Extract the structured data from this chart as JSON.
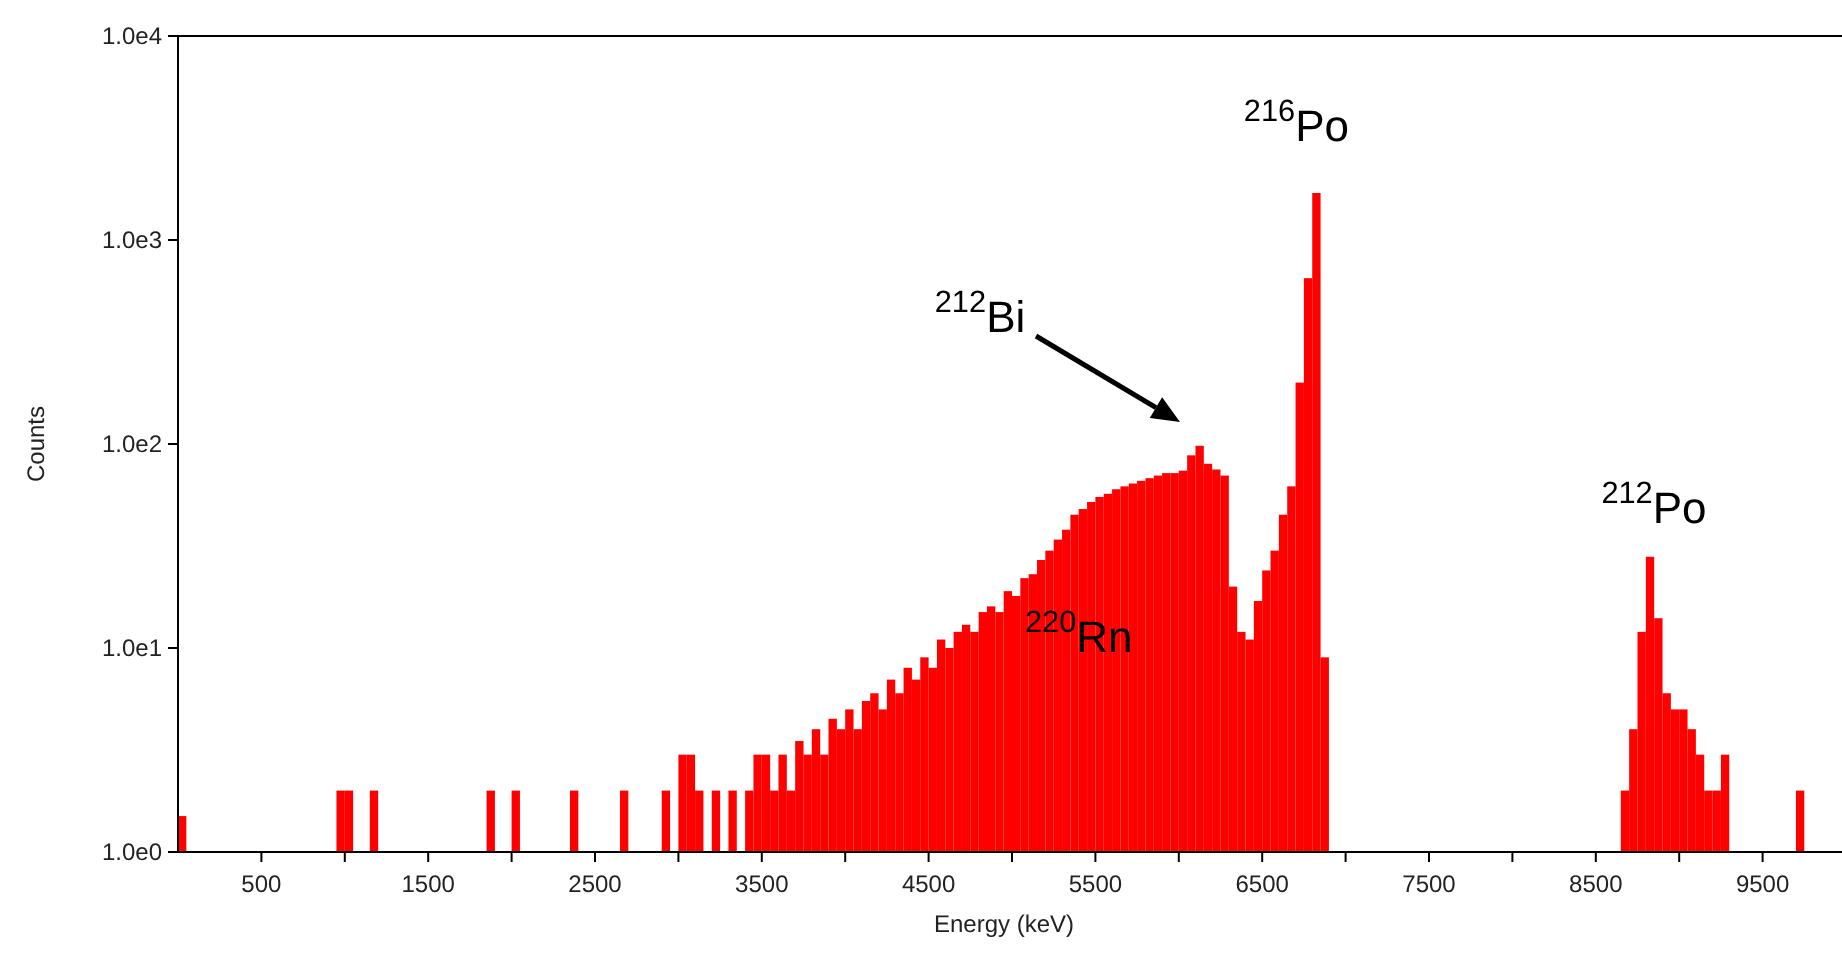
{
  "chart_data": {
    "type": "histogram",
    "xlabel": "Energy (keV)",
    "ylabel": "Counts",
    "color": "#ff0000",
    "log": "y",
    "xlim": [
      0,
      10000
    ],
    "xticks": [
      500,
      {
        "value": 1000,
        "label": null
      },
      1500,
      {
        "value": 2000,
        "label": null
      },
      2500,
      {
        "value": 3000,
        "label": null
      },
      3500,
      {
        "value": 4000,
        "label": null
      },
      4500,
      {
        "value": 5000,
        "label": null
      },
      5500,
      {
        "value": 6000,
        "label": null
      },
      6500,
      {
        "value": 7000,
        "label": null
      },
      7500,
      {
        "value": 8000,
        "label": null
      },
      8500,
      {
        "value": 9000,
        "label": null
      },
      9500
    ],
    "ylim": [
      1,
      10000
    ],
    "yticks": [
      {
        "value": 1,
        "label": "1.0e0"
      },
      {
        "value": 10,
        "label": "1.0e1"
      },
      {
        "value": 100,
        "label": "1.0e2"
      },
      {
        "value": 1000,
        "label": "1.0e3"
      },
      {
        "value": 10000,
        "label": "1.0e4"
      }
    ],
    "bins": [
      0,
      50,
      950,
      1000,
      1050,
      1150,
      1200,
      1850,
      1900,
      2000,
      2050,
      2350,
      2400,
      2650,
      2700,
      2900,
      2950,
      3000,
      3050,
      3100,
      3150,
      3200,
      3250,
      3300,
      3350,
      3400,
      3450,
      3500,
      3550,
      3600,
      3650,
      3700,
      3750,
      3800,
      3850,
      3900,
      3950,
      4000,
      4050,
      4100,
      4150,
      4200,
      4250,
      4300,
      4350,
      4400,
      4450,
      4500,
      4550,
      4600,
      4650,
      4700,
      4750,
      4800,
      4850,
      4900,
      4950,
      5000,
      5050,
      5100,
      5150,
      5200,
      5250,
      5300,
      5350,
      5400,
      5450,
      5500,
      5550,
      5600,
      5650,
      5700,
      5750,
      5800,
      5850,
      5900,
      5950,
      6000,
      6050,
      6100,
      6150,
      6200,
      6250,
      6300,
      6350,
      6400,
      6450,
      6500,
      6550,
      6600,
      6650,
      6700,
      6750,
      6800,
      6850,
      6900,
      8650,
      8700,
      8750,
      8800,
      8850,
      8900,
      8950,
      9000,
      9050,
      9100,
      9150,
      9200,
      9250,
      9300,
      9700,
      9750
    ],
    "values": [
      1.5,
      null,
      2,
      2,
      null,
      2,
      null,
      2,
      null,
      2,
      null,
      2,
      null,
      2,
      null,
      2,
      null,
      3,
      3,
      2,
      null,
      2,
      null,
      2,
      null,
      2,
      3,
      3,
      2,
      3,
      2,
      3.5,
      3,
      4,
      3,
      4.5,
      4,
      5,
      4,
      5.5,
      6,
      5,
      7,
      6,
      8,
      7,
      9,
      8,
      11,
      10,
      12,
      13,
      12,
      15,
      16,
      15,
      19,
      18,
      22,
      23,
      27,
      30,
      34,
      38,
      45,
      48,
      52,
      55,
      57,
      60,
      62,
      64,
      66,
      68,
      70,
      72,
      72,
      74,
      88,
      98,
      80,
      75,
      70,
      20,
      12,
      11,
      17,
      24,
      30,
      45,
      62,
      200,
      650,
      1700,
      9,
      null,
      2,
      4,
      12,
      28,
      14,
      6,
      5,
      5,
      4,
      3,
      2,
      2,
      3,
      null,
      2
    ],
    "annotations": [
      {
        "text": "$^{216}$Po",
        "x": 6825,
        "y": 1700
      },
      "$^{212}$Bi",
      {
        "text": "$^{220}$Rn",
        "x": 5400,
        "y": 11
      },
      {
        "text": "$^{212}$Po",
        "x": 8825,
        "y": 28
      }
    ]
  }
}
